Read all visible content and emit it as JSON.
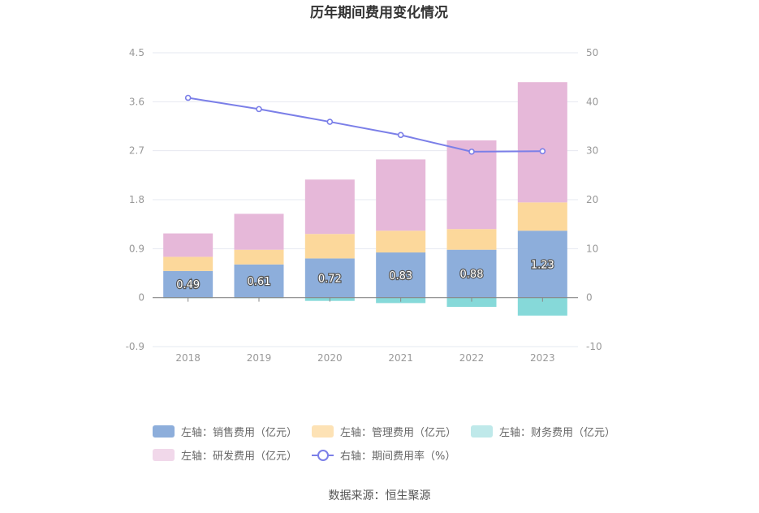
{
  "chart_data": {
    "type": "bar+line",
    "title": "历年期间费用变化情况",
    "categories": [
      "2018",
      "2019",
      "2020",
      "2021",
      "2022",
      "2023"
    ],
    "left_axis": {
      "min": -0.9,
      "max": 4.5,
      "ticks": [
        "-0.9",
        "0",
        "0.9",
        "1.8",
        "2.7",
        "3.6",
        "4.5"
      ]
    },
    "right_axis": {
      "min": -10,
      "max": 50,
      "ticks": [
        "-10",
        "0",
        "10",
        "20",
        "30",
        "40",
        "50"
      ]
    },
    "series": [
      {
        "name": "左轴：销售费用（亿元）",
        "type": "bar",
        "axis": "left",
        "color": "#8daedb",
        "values": [
          0.49,
          0.61,
          0.72,
          0.83,
          0.88,
          1.23
        ],
        "labels": [
          "0.49",
          "0.61",
          "0.72",
          "0.83",
          "0.88",
          "1.23"
        ]
      },
      {
        "name": "左轴：管理费用（亿元）",
        "type": "bar",
        "axis": "left",
        "color": "#fcd89b",
        "values": [
          0.26,
          0.27,
          0.45,
          0.4,
          0.38,
          0.52
        ]
      },
      {
        "name": "左轴：财务费用（亿元）",
        "type": "bar",
        "axis": "left",
        "color": "#86d9d9",
        "values": [
          -0.01,
          -0.01,
          -0.06,
          -0.1,
          -0.17,
          -0.33
        ]
      },
      {
        "name": "左轴：研发费用（亿元）",
        "type": "bar",
        "axis": "left",
        "color": "#e6b8d9",
        "values": [
          0.43,
          0.66,
          1.0,
          1.31,
          1.63,
          2.21
        ]
      },
      {
        "name": "右轴：期间费用率（%）",
        "type": "line",
        "axis": "right",
        "color": "#7b7fe8",
        "values": [
          40.8,
          38.5,
          35.9,
          33.2,
          29.8,
          29.9
        ]
      }
    ]
  },
  "legend": {
    "items": [
      "左轴：销售费用（亿元）",
      "左轴：管理费用（亿元）",
      "左轴：财务费用（亿元）",
      "左轴：研发费用（亿元）",
      "右轴：期间费用率（%）"
    ]
  },
  "source": "数据来源：恒生聚源"
}
